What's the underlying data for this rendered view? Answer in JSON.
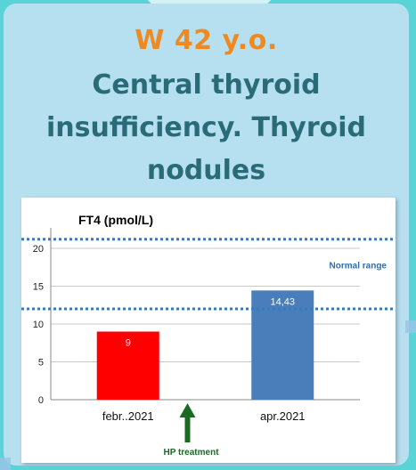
{
  "header": {
    "subtitle": "W 42 y.o.",
    "title": "Central thyroid insufficiency. Thyroid nodules"
  },
  "colors": {
    "accent_orange": "#ef8a23",
    "title_teal": "#2a6b78",
    "bar_red": "#ff0000",
    "bar_blue": "#4a7ebb",
    "normal_range_line": "#3a78b7",
    "arrow_green": "#1a6a24"
  },
  "chart_data": {
    "type": "bar",
    "title": "FT4  (pmol/L)",
    "categories": [
      "febr..2021",
      "apr.2021"
    ],
    "values": [
      9,
      14.43
    ],
    "value_labels": [
      "9",
      "14,43"
    ],
    "bar_colors": [
      "#ff0000",
      "#4a7ebb"
    ],
    "ylim": [
      0,
      22
    ],
    "yticks": [
      0,
      5,
      10,
      15,
      20
    ],
    "grid": true,
    "normal_range": {
      "label": "Normal range",
      "low": 12,
      "high": 21.2
    },
    "annotation": {
      "label": "HP treatment",
      "x_between": [
        "febr..2021",
        "apr.2021"
      ]
    }
  }
}
